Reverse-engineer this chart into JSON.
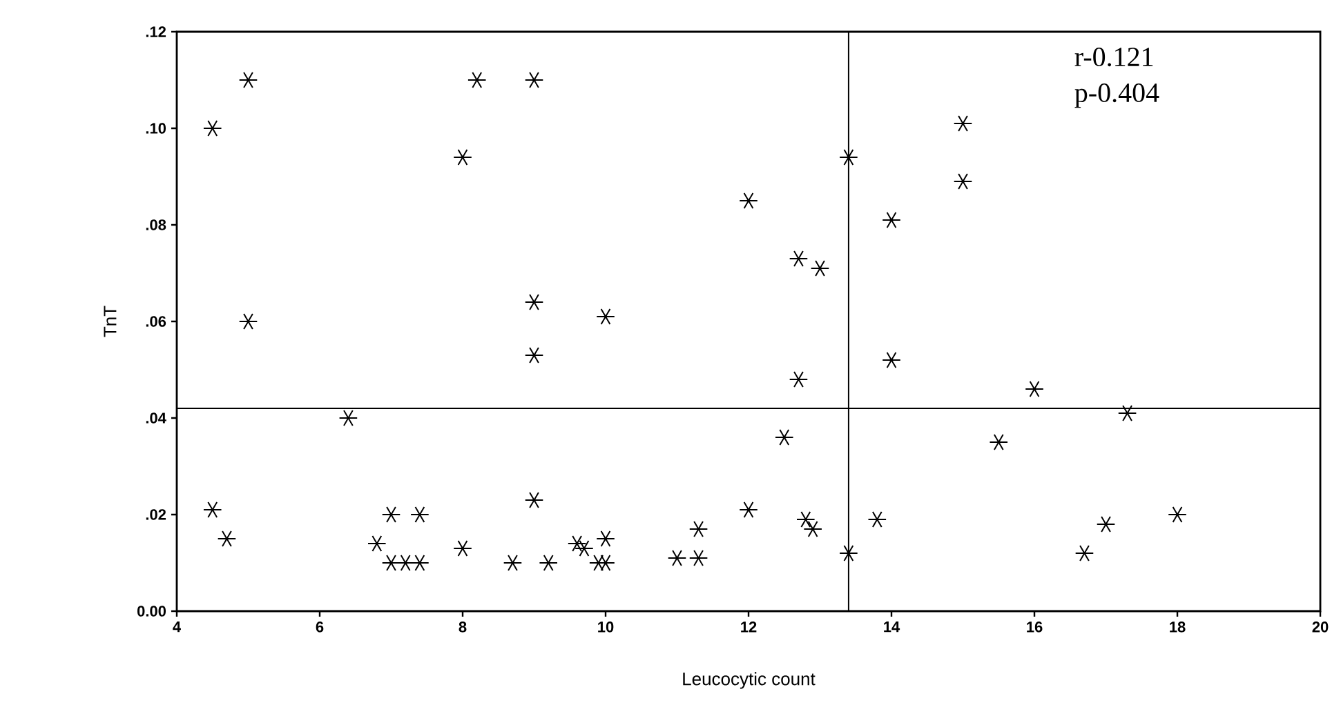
{
  "chart_data": {
    "type": "scatter",
    "xlabel": "Leucocytic count",
    "ylabel": "TnT",
    "xlim": [
      4,
      20
    ],
    "ylim": [
      0,
      0.12
    ],
    "xticks": [
      4,
      6,
      8,
      10,
      12,
      14,
      16,
      18,
      20
    ],
    "yticks": [
      {
        "value": 0,
        "label": "0.00"
      },
      {
        "value": 0.02,
        "label": ".02"
      },
      {
        "value": 0.04,
        "label": ".04"
      },
      {
        "value": 0.06,
        "label": ".06"
      },
      {
        "value": 0.08,
        "label": ".08"
      },
      {
        "value": 0.1,
        "label": ".10"
      },
      {
        "value": 0.12,
        "label": ".12"
      }
    ],
    "marker": "cross",
    "color": "#000000",
    "ref_lines": [
      {
        "axis": "x",
        "value": 13.4
      },
      {
        "axis": "y",
        "value": 0.042
      }
    ],
    "annotations": [
      "r-0.121",
      "p-0.404"
    ],
    "x": [
      4.5,
      5.0,
      5.0,
      8.0,
      8.2,
      9.0,
      9.0,
      9.0,
      10.0,
      12.0,
      12.7,
      13.0,
      12.7,
      13.4,
      14.0,
      15.0,
      15.0,
      14.0,
      16.0,
      17.3,
      15.5,
      12.5,
      6.4,
      4.5,
      4.7,
      6.8,
      7.0,
      7.4,
      7.0,
      7.2,
      7.4,
      8.0,
      8.7,
      9.2,
      9.0,
      9.6,
      9.7,
      10.0,
      9.9,
      10.0,
      11.0,
      11.3,
      11.3,
      12.0,
      12.8,
      12.9,
      13.4,
      13.8,
      16.7,
      17.0,
      18.0
    ],
    "values": [
      0.1,
      0.11,
      0.06,
      0.094,
      0.11,
      0.11,
      0.064,
      0.053,
      0.061,
      0.085,
      0.073,
      0.071,
      0.048,
      0.094,
      0.081,
      0.101,
      0.089,
      0.052,
      0.046,
      0.041,
      0.035,
      0.036,
      0.04,
      0.021,
      0.015,
      0.014,
      0.02,
      0.02,
      0.01,
      0.01,
      0.01,
      0.013,
      0.01,
      0.01,
      0.023,
      0.014,
      0.013,
      0.015,
      0.01,
      0.01,
      0.011,
      0.011,
      0.017,
      0.021,
      0.019,
      0.017,
      0.012,
      0.019,
      0.012,
      0.018,
      0.02
    ]
  }
}
